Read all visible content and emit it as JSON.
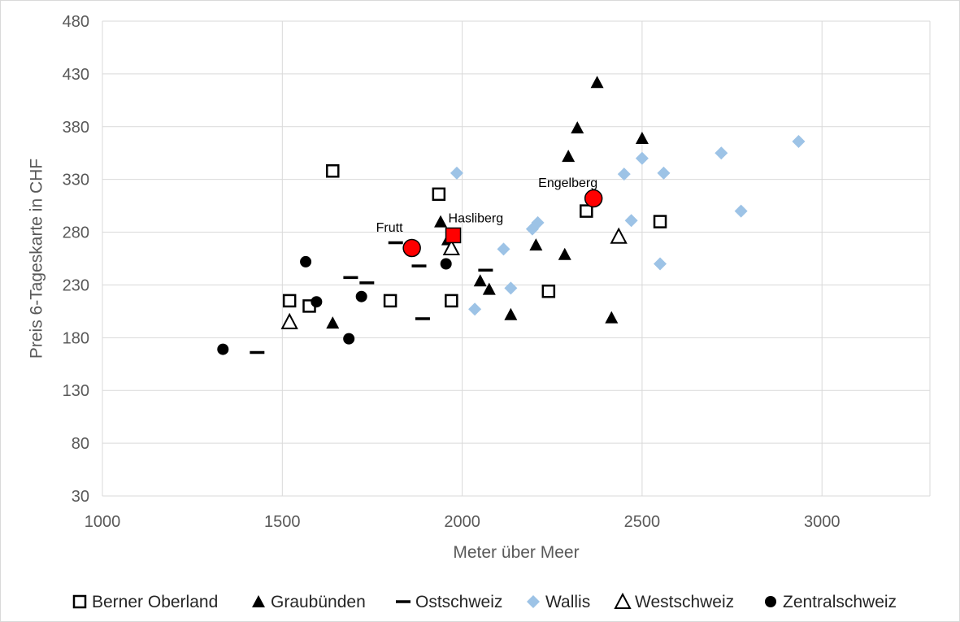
{
  "chart_data": {
    "type": "scatter",
    "title": "",
    "xlabel": "Meter über Meer",
    "ylabel": "Preis 6-Tageskarte in CHF",
    "xlim": [
      1000,
      3300
    ],
    "ylim": [
      30,
      480
    ],
    "x_ticks": [
      1000,
      1500,
      2000,
      2500,
      3000
    ],
    "y_ticks": [
      30,
      80,
      130,
      180,
      230,
      280,
      330,
      380,
      430,
      480
    ],
    "x_tick_labels": [
      "1000",
      "1500",
      "2000",
      "2500",
      "3000"
    ],
    "y_tick_labels": [
      "30",
      "80",
      "130",
      "180",
      "230",
      "280",
      "330",
      "380",
      "430",
      "480"
    ],
    "grid": true,
    "legend_position": "bottom",
    "series": [
      {
        "name": "Berner Oberland",
        "marker": "open-square",
        "color": "#000000",
        "points": [
          [
            1640,
            338
          ],
          [
            1935,
            316
          ],
          [
            1520,
            215
          ],
          [
            1575,
            210
          ],
          [
            1800,
            215
          ],
          [
            1970,
            215
          ],
          [
            2240,
            224
          ],
          [
            2345,
            300
          ],
          [
            2550,
            290
          ]
        ]
      },
      {
        "name": "Graubünden",
        "marker": "filled-triangle",
        "color": "#000000",
        "points": [
          [
            1640,
            194
          ],
          [
            1940,
            290
          ],
          [
            1960,
            273
          ],
          [
            2050,
            234
          ],
          [
            2075,
            226
          ],
          [
            2135,
            202
          ],
          [
            2205,
            268
          ],
          [
            2285,
            259
          ],
          [
            2295,
            352
          ],
          [
            2320,
            379
          ],
          [
            2375,
            422
          ],
          [
            2415,
            199
          ],
          [
            2500,
            369
          ]
        ]
      },
      {
        "name": "Ostschweiz",
        "marker": "dash",
        "color": "#000000",
        "points": [
          [
            1430,
            166
          ],
          [
            1690,
            237
          ],
          [
            1735,
            232
          ],
          [
            1815,
            270
          ],
          [
            1880,
            248
          ],
          [
            1890,
            198
          ],
          [
            2065,
            244
          ]
        ]
      },
      {
        "name": "Wallis",
        "marker": "diamond",
        "color": "#9dc3e6",
        "points": [
          [
            1985,
            336
          ],
          [
            2035,
            207
          ],
          [
            2115,
            264
          ],
          [
            2135,
            227
          ],
          [
            2195,
            283
          ],
          [
            2210,
            289
          ],
          [
            2450,
            335
          ],
          [
            2470,
            291
          ],
          [
            2500,
            350
          ],
          [
            2550,
            250
          ],
          [
            2560,
            336
          ],
          [
            2720,
            355
          ],
          [
            2775,
            300
          ],
          [
            2935,
            366
          ]
        ]
      },
      {
        "name": "Westschweiz",
        "marker": "open-triangle",
        "color": "#000000",
        "points": [
          [
            1520,
            195
          ],
          [
            1970,
            265
          ],
          [
            2435,
            276
          ]
        ]
      },
      {
        "name": "Zentralschweiz",
        "marker": "filled-circle",
        "color": "#000000",
        "points": [
          [
            1335,
            169
          ],
          [
            1565,
            252
          ],
          [
            1595,
            214
          ],
          [
            1685,
            179
          ],
          [
            1720,
            219
          ],
          [
            1955,
            250
          ]
        ]
      }
    ],
    "highlights": [
      {
        "label": "Frutt",
        "marker": "circle",
        "color": "#ff0000",
        "x": 1860,
        "y": 265
      },
      {
        "label": "Hasliberg",
        "marker": "square",
        "color": "#ff0000",
        "x": 1975,
        "y": 277
      },
      {
        "label": "Engelberg",
        "marker": "circle",
        "color": "#ff0000",
        "x": 2365,
        "y": 312
      }
    ]
  },
  "colors": {
    "grid": "#d9d9d9",
    "axis_text": "#595959",
    "highlight": "#ff0000",
    "wallis": "#9dc3e6"
  }
}
